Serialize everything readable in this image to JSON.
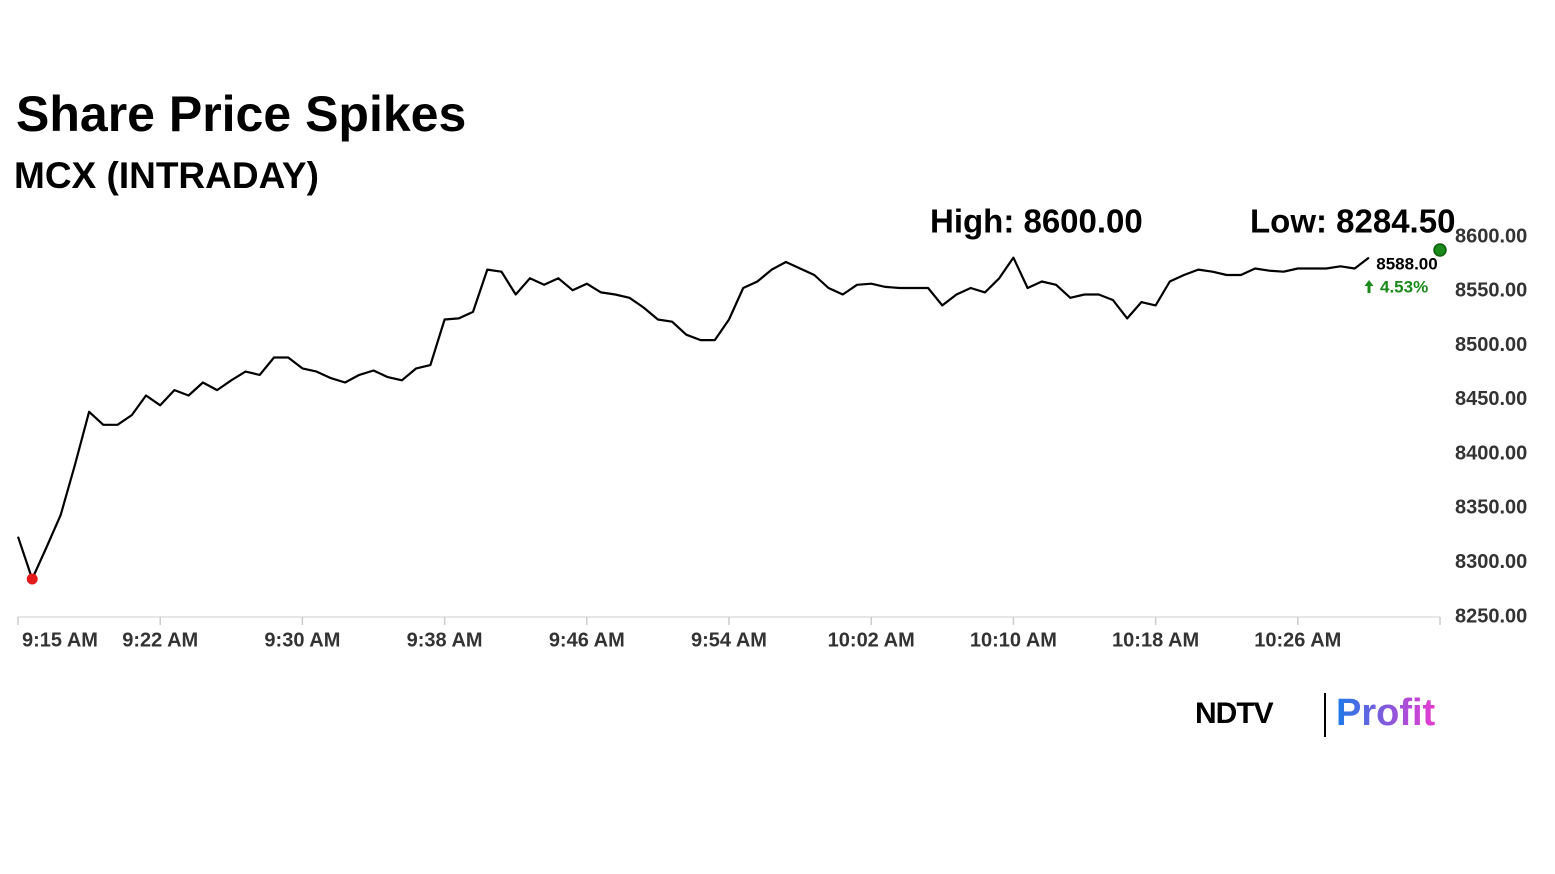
{
  "chart_data": {
    "type": "line",
    "title": "Share Price Spikes",
    "subtitle": "MCX (INTRADAY)",
    "annotations": {
      "high": "High: 8600.00",
      "low": "Low: 8284.50"
    },
    "categories": [
      "9:15 AM",
      null,
      null,
      null,
      null,
      null,
      null,
      null,
      null,
      null,
      "9:22 AM",
      null,
      null,
      null,
      null,
      null,
      null,
      null,
      null,
      null,
      "9:30 AM",
      null,
      null,
      null,
      null,
      null,
      null,
      null,
      null,
      null,
      "9:38 AM",
      null,
      null,
      null,
      null,
      null,
      null,
      null,
      null,
      null,
      "9:46 AM",
      null,
      null,
      null,
      null,
      null,
      null,
      null,
      null,
      null,
      "9:54 AM",
      null,
      null,
      null,
      null,
      null,
      null,
      null,
      null,
      null,
      "10:02 AM",
      null,
      null,
      null,
      null,
      null,
      null,
      null,
      null,
      null,
      "10:10 AM",
      null,
      null,
      null,
      null,
      null,
      null,
      null,
      null,
      null,
      "10:18 AM",
      null,
      null,
      null,
      null,
      null,
      null,
      null,
      null,
      null,
      "10:26 AM",
      null,
      null,
      null,
      null,
      null,
      null,
      null,
      null,
      null,
      null
    ],
    "series": [
      {
        "name": "MCX",
        "color": "#000000",
        "values": [
          8324,
          8285,
          8314,
          8344,
          8390,
          8439,
          8427,
          8427,
          8436,
          8454,
          8445,
          8459,
          8454,
          8466,
          8459,
          8468,
          8476,
          8473,
          8489,
          8489,
          8479,
          8476,
          8470,
          8466,
          8473,
          8477,
          8471,
          8468,
          8479,
          8482,
          8524,
          8525,
          8531,
          8570,
          8568,
          8547,
          8562,
          8556,
          8562,
          8551,
          8557,
          8549,
          8547,
          8544,
          8535,
          8524,
          8522,
          8510,
          8505,
          8505,
          8524,
          8553,
          8559,
          8570,
          8577,
          8571,
          8565,
          8553,
          8547,
          8556,
          8557,
          8554,
          8553,
          8553,
          8553,
          8537,
          8547,
          8553,
          8549,
          8562,
          8581,
          8553,
          8559,
          8556,
          8544,
          8547,
          8547,
          8542,
          8525,
          8540,
          8537,
          8559,
          8565,
          8570,
          8568,
          8565,
          8565,
          8571,
          8569,
          8568,
          8571,
          8571,
          8571,
          8573,
          8571,
          8581,
          null,
          null,
          null,
          null,
          null
        ]
      }
    ],
    "last_price": {
      "value": 8588,
      "label": "8588.00"
    },
    "change_pct": {
      "value": 4.53,
      "label": "4.53%",
      "color": "#1a8a1a"
    },
    "low_marker_color": "#e31b1b",
    "ylim": [
      8250,
      8600
    ],
    "yticks": [
      {
        "value": 8250,
        "label": "8250.00"
      },
      {
        "value": 8300,
        "label": "8300.00"
      },
      {
        "value": 8350,
        "label": "8350.00"
      },
      {
        "value": 8400,
        "label": "8400.00"
      },
      {
        "value": 8450,
        "label": "8450.00"
      },
      {
        "value": 8500,
        "label": "8500.00"
      },
      {
        "value": 8550,
        "label": "8550.00"
      },
      {
        "value": 8600,
        "label": "8600.00"
      }
    ],
    "grid": false
  },
  "branding": {
    "left": "NDTV",
    "right": "Profit"
  }
}
